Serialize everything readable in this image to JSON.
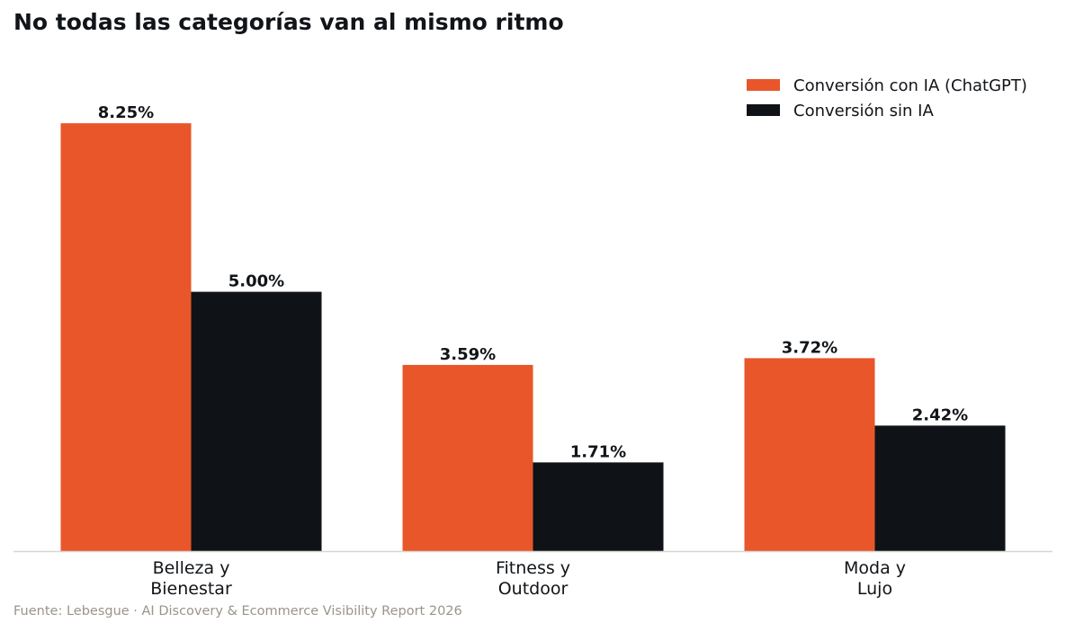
{
  "title": "No todas las categorías van al mismo ritmo",
  "source": "Fuente: Lebesgue · AI Discovery & Ecommerce Visibility Report 2026",
  "chart_data": {
    "type": "bar",
    "title": "No todas las categorías van al mismo ritmo",
    "categories": [
      [
        "Belleza y",
        "Bienestar"
      ],
      [
        "Fitness y",
        "Outdoor"
      ],
      [
        "Moda y",
        "Lujo"
      ]
    ],
    "series": [
      {
        "name": "Conversión con IA (ChatGPT)",
        "color": "#e8562a",
        "values": [
          8.25,
          3.59,
          3.72
        ],
        "labels": [
          "8.25%",
          "3.59%",
          "3.72%"
        ]
      },
      {
        "name": "Conversión sin IA",
        "color": "#0f1216",
        "values": [
          5.0,
          1.71,
          2.42
        ],
        "labels": [
          "5.00%",
          "1.71%",
          "2.42%"
        ]
      }
    ],
    "xlabel": "",
    "ylabel": "",
    "ylim": [
      0,
      9.5
    ],
    "grid": false,
    "legend": "top-right",
    "axis_color": "#d9d6cf"
  }
}
